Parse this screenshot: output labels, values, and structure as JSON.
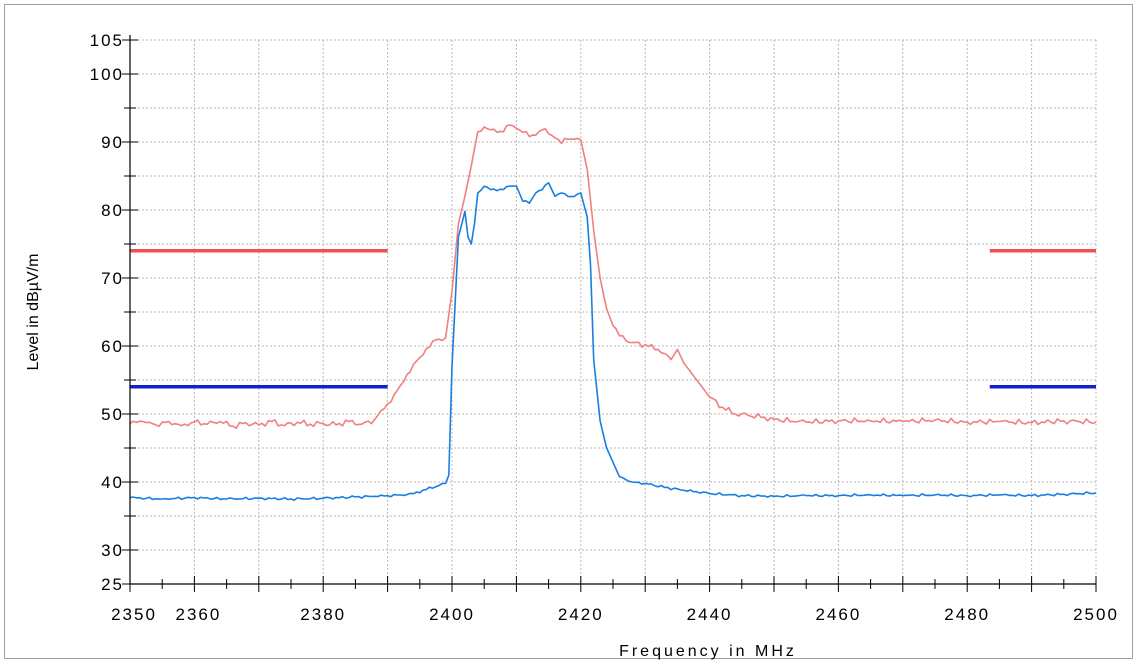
{
  "chart_data": {
    "type": "line",
    "xlabel": "Frequency in MHz",
    "ylabel": "Level in dBµV/m",
    "xlim": [
      2350,
      2500
    ],
    "ylim": [
      25,
      105
    ],
    "grid": true,
    "x_ticks": [
      2350,
      2360,
      2380,
      2400,
      2420,
      2440,
      2460,
      2480,
      2500
    ],
    "y_ticks": [
      25,
      30,
      40,
      50,
      60,
      70,
      80,
      90,
      100,
      105
    ],
    "colors": {
      "peak": "#f08080",
      "average": "#1a7ee0",
      "peak_limit": "#f05050",
      "average_limit": "#1020d0",
      "grid": "#b8b8b8"
    },
    "series": [
      {
        "key": "peak",
        "x": [
          2350,
          2352,
          2354,
          2356,
          2358,
          2360,
          2362,
          2364,
          2366,
          2368,
          2370,
          2372,
          2374,
          2376,
          2378,
          2380,
          2382,
          2384,
          2386,
          2388,
          2389,
          2390,
          2391,
          2392,
          2393,
          2394,
          2395,
          2396,
          2397,
          2398,
          2399,
          2400,
          2401,
          2402,
          2403,
          2404,
          2405,
          2406,
          2408,
          2409,
          2410,
          2411,
          2412,
          2413,
          2414,
          2415,
          2416,
          2417,
          2418,
          2419,
          2420,
          2421,
          2422,
          2423,
          2424,
          2425,
          2426,
          2428,
          2430,
          2432,
          2434,
          2435,
          2436,
          2438,
          2440,
          2442,
          2444,
          2446,
          2448,
          2450,
          2455,
          2460,
          2465,
          2470,
          2475,
          2480,
          2485,
          2490,
          2495,
          2500
        ],
        "y": [
          48.6,
          48.9,
          48.4,
          48.9,
          48.3,
          48.8,
          48.5,
          48.9,
          48.2,
          48.7,
          48.4,
          48.9,
          48.3,
          48.8,
          48.5,
          48.6,
          48.4,
          48.9,
          48.5,
          49.2,
          50.5,
          51.5,
          52.8,
          54.2,
          55.8,
          57.3,
          58.3,
          59.6,
          60.7,
          61.0,
          61.2,
          68.0,
          78.0,
          82.0,
          86.5,
          91.5,
          92.2,
          91.8,
          91.5,
          92.5,
          92.0,
          91.4,
          90.8,
          91.0,
          91.8,
          91.2,
          90.6,
          89.8,
          90.4,
          90.4,
          90.3,
          86.0,
          77.0,
          70.0,
          65.5,
          63.0,
          61.5,
          60.5,
          60.2,
          59.5,
          58.0,
          59.5,
          57.5,
          55.0,
          52.5,
          51.0,
          50.0,
          49.8,
          49.5,
          49.2,
          48.8,
          49.0,
          49.0,
          48.9,
          49.1,
          48.8,
          48.9,
          48.7,
          49.0,
          48.8
        ]
      },
      {
        "key": "average",
        "x": [
          2350,
          2355,
          2360,
          2365,
          2370,
          2375,
          2380,
          2385,
          2388,
          2390,
          2392,
          2394,
          2396,
          2398,
          2399,
          2399.5,
          2400,
          2401,
          2402,
          2402.5,
          2403,
          2403.5,
          2404,
          2405,
          2406,
          2408,
          2409,
          2410,
          2411,
          2412,
          2413,
          2414,
          2415,
          2416,
          2417,
          2418,
          2419,
          2420,
          2421,
          2421.5,
          2422,
          2423,
          2424,
          2426,
          2428,
          2430,
          2433,
          2436,
          2440,
          2445,
          2450,
          2455,
          2460,
          2465,
          2470,
          2475,
          2480,
          2485,
          2490,
          2495,
          2500
        ],
        "y": [
          37.7,
          37.5,
          37.7,
          37.5,
          37.6,
          37.5,
          37.6,
          37.8,
          37.9,
          38.0,
          38.1,
          38.3,
          38.9,
          39.5,
          39.8,
          41.0,
          57.0,
          76.0,
          79.8,
          76.0,
          75.0,
          78.0,
          82.5,
          83.5,
          83.0,
          83.0,
          83.5,
          83.5,
          81.3,
          81.0,
          82.5,
          83.0,
          84.0,
          82.0,
          82.5,
          82.0,
          82.0,
          82.5,
          79.0,
          72.0,
          58.0,
          49.0,
          45.0,
          40.8,
          40.0,
          39.8,
          39.2,
          38.8,
          38.3,
          38.0,
          37.9,
          38.0,
          38.0,
          38.1,
          38.0,
          38.1,
          38.0,
          38.1,
          38.0,
          38.2,
          38.4
        ]
      },
      {
        "key": "peak_limit",
        "segments": [
          {
            "x": [
              2350,
              2390
            ],
            "y": [
              74,
              74
            ]
          },
          {
            "x": [
              2483.5,
              2500
            ],
            "y": [
              74,
              74
            ]
          }
        ]
      },
      {
        "key": "average_limit",
        "segments": [
          {
            "x": [
              2350,
              2390
            ],
            "y": [
              54,
              54
            ]
          },
          {
            "x": [
              2483.5,
              2500
            ],
            "y": [
              54,
              54
            ]
          }
        ]
      }
    ]
  }
}
